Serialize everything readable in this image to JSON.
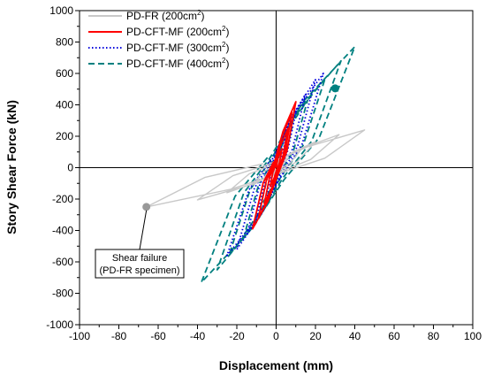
{
  "chart_data": {
    "type": "line",
    "xlabel": "Displacement (mm)",
    "ylabel": "Story Shear Force (kN)",
    "xlim": [
      -100,
      100
    ],
    "ylim": [
      -1000,
      1000
    ],
    "xticks": [
      -100,
      -80,
      -60,
      -40,
      -20,
      0,
      20,
      40,
      60,
      80,
      100
    ],
    "yticks": [
      -1000,
      -800,
      -600,
      -400,
      -200,
      0,
      200,
      400,
      600,
      800,
      1000
    ],
    "grid": false,
    "legend_position": "top-left",
    "series": [
      {
        "name": "PD-FR (200cm",
        "name_sup": "2",
        "name_end": ")",
        "color": "#c8c8c8",
        "style": "solid",
        "peak_pos": [
          45,
          240
        ],
        "peak_neg": [
          -66,
          -250
        ],
        "peaks": [
          [
            6,
            60
          ],
          [
            13,
            120
          ],
          [
            20,
            165
          ],
          [
            32,
            210
          ],
          [
            45,
            240
          ]
        ],
        "valleys": [
          [
            -6,
            -60
          ],
          [
            -12,
            -110
          ],
          [
            -25,
            -160
          ],
          [
            -40,
            -205
          ],
          [
            -66,
            -250
          ]
        ]
      },
      {
        "name": "PD-CFT-MF (200cm",
        "name_sup": "2",
        "name_end": ")",
        "color": "#ff0000",
        "style": "solid",
        "peaks": [
          [
            3,
            120
          ],
          [
            6,
            250
          ],
          [
            8,
            350
          ],
          [
            10,
            420
          ]
        ],
        "valleys": [
          [
            -3,
            -120
          ],
          [
            -6,
            -230
          ],
          [
            -9,
            -320
          ],
          [
            -12,
            -390
          ]
        ]
      },
      {
        "name": "PD-CFT-MF (300cm",
        "name_sup": "2",
        "name_end": ")",
        "color": "#0000dd",
        "style": "dotted",
        "peaks": [
          [
            5,
            200
          ],
          [
            10,
            350
          ],
          [
            15,
            470
          ],
          [
            20,
            560
          ],
          [
            24,
            600
          ]
        ],
        "valleys": [
          [
            -5,
            -200
          ],
          [
            -10,
            -320
          ],
          [
            -15,
            -430
          ],
          [
            -20,
            -520
          ],
          [
            -25,
            -560
          ]
        ]
      },
      {
        "name": "PD-CFT-MF (400cm",
        "name_sup": "2",
        "name_end": ")",
        "color": "#008080",
        "style": "dashed",
        "peaks": [
          [
            8,
            250
          ],
          [
            16,
            430
          ],
          [
            25,
            570
          ],
          [
            33,
            680
          ],
          [
            40,
            770
          ]
        ],
        "valleys": [
          [
            -8,
            -250
          ],
          [
            -16,
            -420
          ],
          [
            -24,
            -560
          ],
          [
            -30,
            -650
          ],
          [
            -38,
            -730
          ]
        ]
      }
    ],
    "failure_points": [
      {
        "series": "PD-FR",
        "x": -66,
        "y": -250
      },
      {
        "series": "PD-CFT-MF (400cm2)",
        "x": 30,
        "y": 505
      }
    ],
    "annotation": {
      "line1": "Shear failure",
      "line2": "(PD-FR specimen)",
      "x": -65,
      "y": -440
    }
  }
}
